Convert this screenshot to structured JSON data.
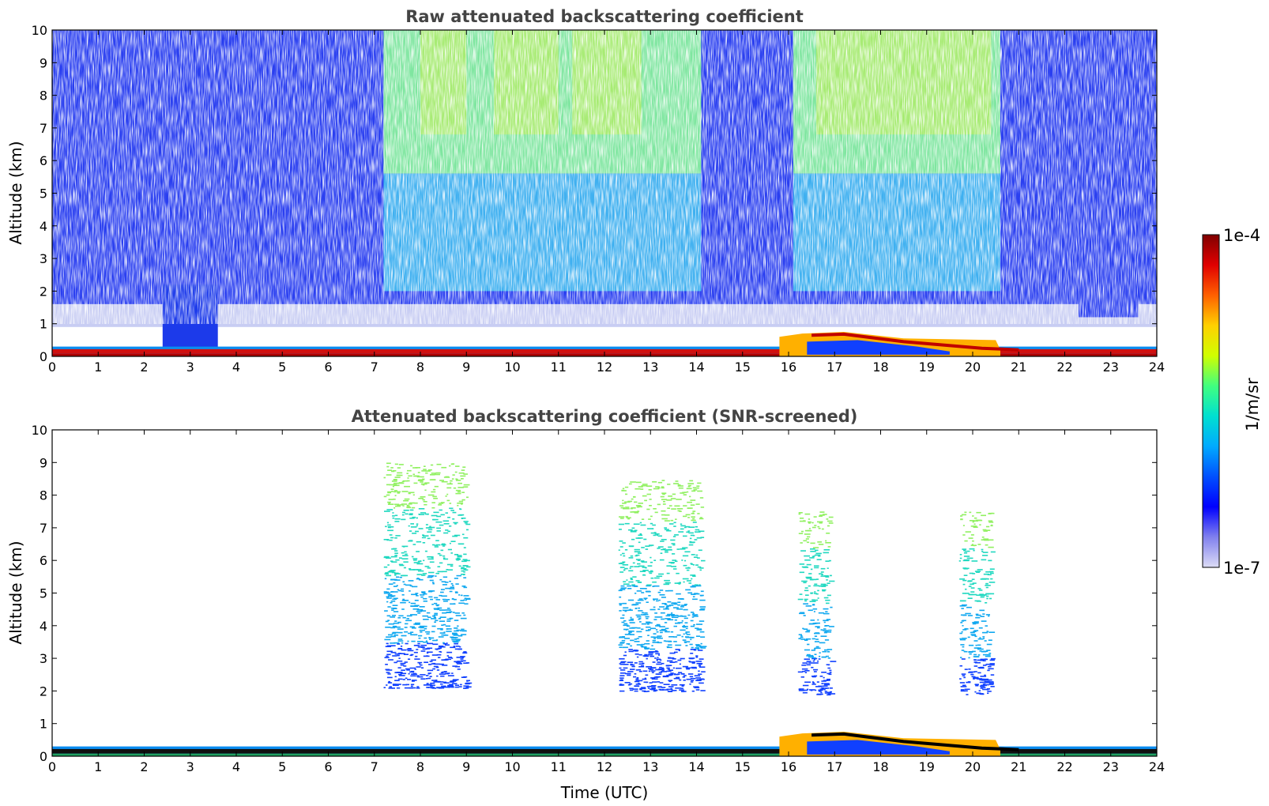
{
  "chart_data": [
    {
      "type": "heatmap",
      "title": "Raw attenuated backscattering coefficient",
      "xlabel": "",
      "ylabel": "Altitude (km)",
      "xlim": [
        0,
        24
      ],
      "ylim": [
        0,
        10
      ],
      "x_ticks": [
        "0",
        "1",
        "2",
        "3",
        "4",
        "5",
        "6",
        "7",
        "8",
        "9",
        "10",
        "11",
        "12",
        "13",
        "14",
        "15",
        "16",
        "17",
        "18",
        "19",
        "20",
        "21",
        "22",
        "23",
        "24"
      ],
      "y_ticks": [
        "0",
        "1",
        "2",
        "3",
        "4",
        "5",
        "6",
        "7",
        "8",
        "9",
        "10"
      ],
      "grid": false,
      "features": [
        {
          "name": "aerosol boundary layer",
          "time_range": [
            0,
            24
          ],
          "altitude_km": [
            0,
            0.3
          ]
        },
        {
          "name": "elevated boundary layer",
          "time_range": [
            15.8,
            20.6
          ],
          "altitude_km": [
            0,
            0.75
          ]
        },
        {
          "name": "solar background noise",
          "time_range": [
            7.2,
            14.1
          ],
          "altitude_km": [
            2,
            10
          ]
        },
        {
          "name": "solar background noise",
          "time_range": [
            16.1,
            20.6
          ],
          "altitude_km": [
            2,
            10
          ]
        }
      ]
    },
    {
      "type": "heatmap",
      "title": "Attenuated backscattering coefficient (SNR-screened)",
      "xlabel": "Time (UTC)",
      "ylabel": "Altitude (km)",
      "xlim": [
        0,
        24
      ],
      "ylim": [
        0,
        10
      ],
      "x_ticks": [
        "0",
        "1",
        "2",
        "3",
        "4",
        "5",
        "6",
        "7",
        "8",
        "9",
        "10",
        "11",
        "12",
        "13",
        "14",
        "15",
        "16",
        "17",
        "18",
        "19",
        "20",
        "21",
        "22",
        "23",
        "24"
      ],
      "y_ticks": [
        "0",
        "1",
        "2",
        "3",
        "4",
        "5",
        "6",
        "7",
        "8",
        "9",
        "10"
      ],
      "grid": false,
      "features": [
        {
          "name": "aerosol boundary layer",
          "time_range": [
            0,
            24
          ],
          "altitude_km": [
            0,
            0.3
          ]
        },
        {
          "name": "elevated boundary layer",
          "time_range": [
            15.8,
            20.6
          ],
          "altitude_km": [
            0,
            0.75
          ]
        },
        {
          "name": "cloud",
          "time_range": [
            7.2,
            9.0
          ],
          "altitude_km": [
            2.1,
            9.0
          ]
        },
        {
          "name": "cloud",
          "time_range": [
            12.3,
            14.1
          ],
          "altitude_km": [
            2.0,
            8.5
          ]
        },
        {
          "name": "cloud",
          "time_range": [
            16.2,
            16.9
          ],
          "altitude_km": [
            1.9,
            7.5
          ]
        },
        {
          "name": "cloud",
          "time_range": [
            19.7,
            20.4
          ],
          "altitude_km": [
            1.9,
            7.5
          ]
        }
      ]
    }
  ],
  "colorbar": {
    "label": "1/m/sr",
    "max_label": "1e-4",
    "min_label": "1e-7",
    "stops": [
      "#dcdcf5",
      "#8080ee",
      "#0000ff",
      "#0050ff",
      "#00aaff",
      "#00e0d0",
      "#40ff80",
      "#d0ff00",
      "#ffd000",
      "#ff6000",
      "#e00000",
      "#800000"
    ]
  }
}
